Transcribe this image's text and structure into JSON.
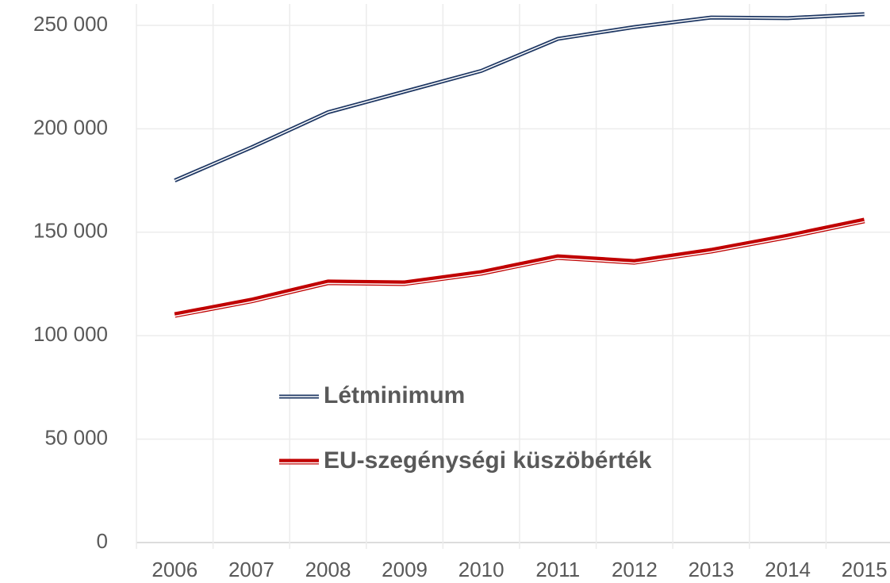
{
  "chart_data": {
    "type": "line",
    "categories": [
      "2006",
      "2007",
      "2008",
      "2009",
      "2010",
      "2011",
      "2012",
      "2013",
      "2014",
      "2015"
    ],
    "series": [
      {
        "name": "Létminimum",
        "color": "#1f3864",
        "values": [
          175000,
          191000,
          208000,
          218000,
          228000,
          243500,
          249200,
          253800,
          253500,
          255400
        ]
      },
      {
        "name": "EU-szegénységi küszöbérték",
        "color": "#c00000",
        "values": [
          110000,
          117000,
          125800,
          125400,
          130400,
          138000,
          135700,
          141100,
          148000,
          155700
        ]
      }
    ],
    "ylim": [
      0,
      250000
    ],
    "yticks": [
      0,
      {
        "value": 50000,
        "label": "50 000"
      },
      {
        "value": 100000,
        "label": "100 000"
      },
      {
        "value": 150000,
        "label": "150 000"
      },
      {
        "value": 200000,
        "label": "200 000"
      },
      {
        "value": 250000,
        "label": "250 000"
      }
    ],
    "grid": true
  }
}
